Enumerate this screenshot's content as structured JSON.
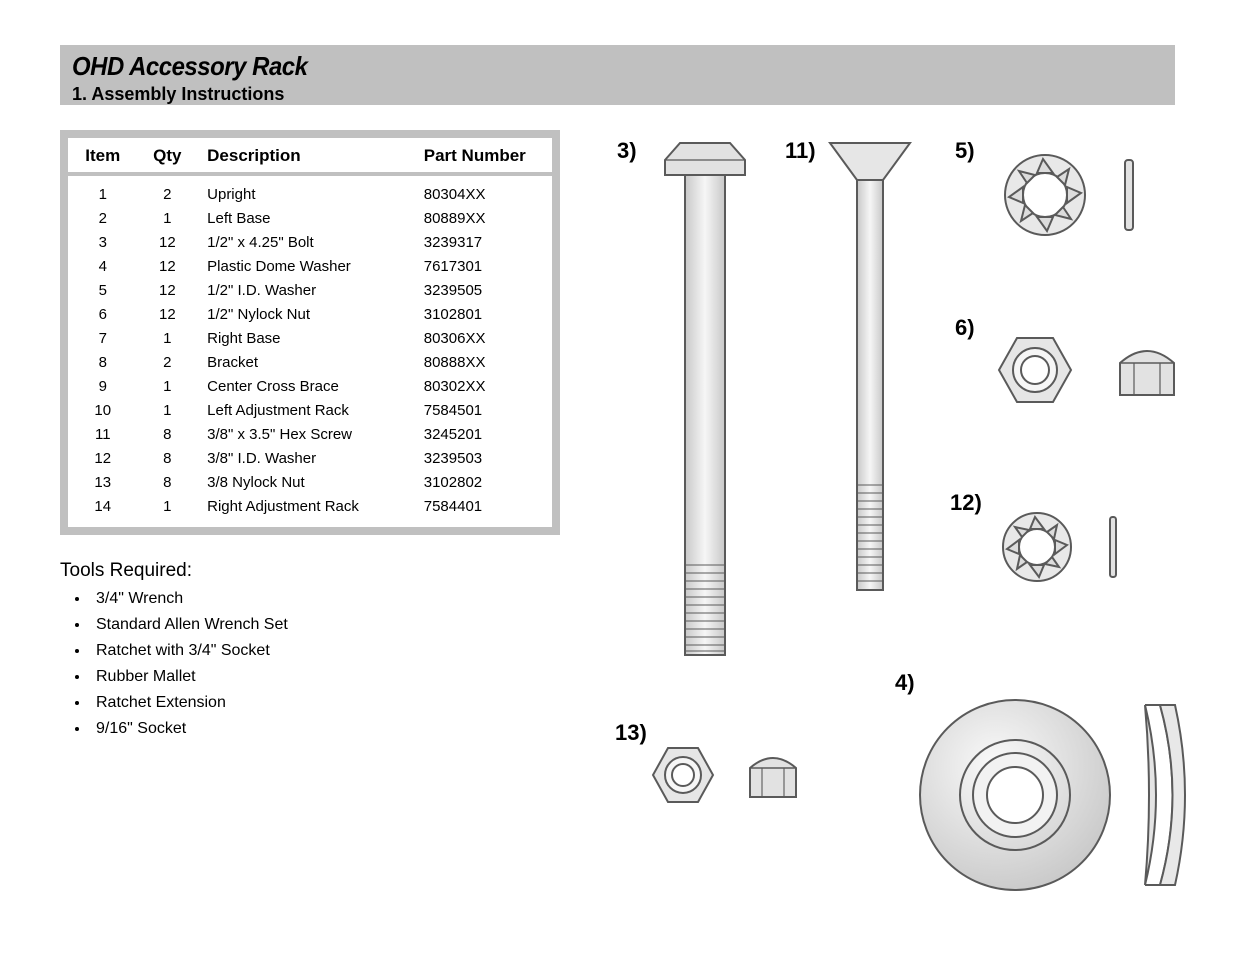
{
  "header": {
    "title": "OHD Accessory Rack",
    "subtitle": "1. Assembly Instructions"
  },
  "parts_table": {
    "columns": [
      "Item",
      "Qty",
      "Description",
      "Part Number"
    ],
    "rows": [
      [
        "1",
        "2",
        "Upright",
        "80304XX"
      ],
      [
        "2",
        "1",
        "Left Base",
        "80889XX"
      ],
      [
        "3",
        "12",
        "1/2\" x 4.25\" Bolt",
        "3239317"
      ],
      [
        "4",
        "12",
        "Plastic Dome Washer",
        "7617301"
      ],
      [
        "5",
        "12",
        "1/2\" I.D. Washer",
        "3239505"
      ],
      [
        "6",
        "12",
        "1/2\" Nylock Nut",
        "3102801"
      ],
      [
        "7",
        "1",
        "Right Base",
        "80306XX"
      ],
      [
        "8",
        "2",
        "Bracket",
        "80888XX"
      ],
      [
        "9",
        "1",
        "Center Cross Brace",
        "80302XX"
      ],
      [
        "10",
        "1",
        "Left Adjustment Rack",
        "7584501"
      ],
      [
        "11",
        "8",
        "3/8\" x 3.5\" Hex Screw",
        "3245201"
      ],
      [
        "12",
        "8",
        "3/8\" I.D. Washer",
        "3239503"
      ],
      [
        "13",
        "8",
        "3/8 Nylock Nut",
        "3102802"
      ],
      [
        "14",
        "1",
        "Right Adjustment Rack",
        "7584401"
      ]
    ]
  },
  "tools": {
    "heading": "Tools Required:",
    "items": [
      "3/4\" Wrench",
      "Standard Allen Wrench Set",
      "Ratchet with 3/4\" Socket",
      "Rubber Mallet",
      "Ratchet Extension",
      "9/16\" Socket"
    ]
  },
  "callouts": {
    "c3": "3)",
    "c11": "11)",
    "c5": "5)",
    "c6": "6)",
    "c12": "12)",
    "c4": "4)",
    "c13": "13)"
  },
  "style": {
    "page_bg": "#ffffff",
    "header_bg": "#c0c0c0",
    "panel_bg": "#c0c0c0",
    "table_bg": "#ffffff",
    "stroke": "#5a5a5a",
    "fill_light": "#f4f4f4",
    "fill_mid": "#d9d9d9",
    "fill_dark": "#b8b8b8"
  }
}
